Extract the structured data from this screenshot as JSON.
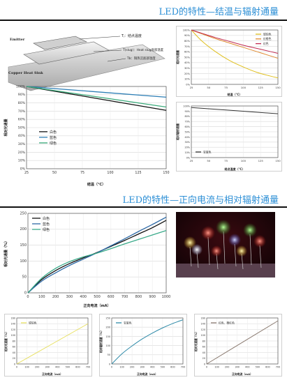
{
  "section1": {
    "title": "LED的特性—结温与辐射通量"
  },
  "section2": {
    "title": "LED的特性—正向电流与相对辐射通量"
  },
  "diagram": {
    "labels": {
      "emitter": "Emitter",
      "tj": "Tⱼ：结点温度",
      "tslug": "T(slug)：Heat slug底部温度",
      "tb": "Tb：铜热沉底部温度",
      "heatsink": "Copper Heat Sink"
    }
  },
  "led_photo": {
    "icon": "led-bulbs-photo"
  },
  "chart_data": [
    {
      "id": "c1",
      "type": "line",
      "x": [
        25,
        150
      ],
      "xlim": [
        25,
        150
      ],
      "ylim": [
        0,
        100
      ],
      "xticks": [
        "25",
        "50",
        "75",
        "100",
        "125",
        "150"
      ],
      "yticks": [
        "0%",
        "10%",
        "20%",
        "30%",
        "40%",
        "50%",
        "60%",
        "70%",
        "80%",
        "90%",
        "100%"
      ],
      "xlabel": "结温（°C）",
      "ylabel": "相对光通量",
      "series": [
        {
          "name": "白色",
          "color": "#111111",
          "values": [
            100,
            71
          ]
        },
        {
          "name": "蓝色",
          "color": "#2e7fb6",
          "values": [
            100,
            87
          ]
        },
        {
          "name": "绿色",
          "color": "#3aaa7a",
          "values": [
            100,
            75
          ]
        }
      ],
      "legend": "left"
    },
    {
      "id": "c2",
      "type": "line",
      "x": [
        25,
        40,
        60,
        80,
        100,
        120,
        140,
        150
      ],
      "xlim": [
        25,
        150
      ],
      "ylim": [
        0,
        100
      ],
      "xticks": [
        "25",
        "50",
        "75",
        "100",
        "125",
        "150"
      ],
      "yticks": [
        "0%",
        "10%",
        "20%",
        "30%",
        "40%",
        "50%",
        "60%",
        "70%",
        "80%",
        "90%",
        "100%"
      ],
      "xlabel": "结温（°C）",
      "ylabel": "相对光通量",
      "series": [
        {
          "name": "琥珀色",
          "color": "#e0c020",
          "values": [
            100,
            80,
            60,
            44,
            32,
            22,
            15,
            12
          ]
        },
        {
          "name": "红橙色",
          "color": "#e08a30",
          "values": [
            100,
            93,
            84,
            76,
            68,
            60,
            52,
            48
          ]
        },
        {
          "name": "红色",
          "color": "#c02a50",
          "values": [
            100,
            94,
            86,
            79,
            72,
            66,
            60,
            57
          ]
        }
      ],
      "legend": "top-right"
    },
    {
      "id": "c3",
      "type": "line",
      "x": [
        25,
        150
      ],
      "xlim": [
        25,
        150
      ],
      "ylim": [
        0,
        100
      ],
      "xticks": [
        "25",
        "50",
        "75",
        "100",
        "125",
        "150"
      ],
      "yticks": [
        "0%",
        "10%",
        "20%",
        "30%",
        "40%",
        "50%",
        "60%",
        "70%",
        "80%",
        "90%",
        "100%"
      ],
      "xlabel": "结点温度（°C）",
      "ylabel": "相对辐射通量",
      "series": [
        {
          "name": "宝蓝色",
          "color": "#333333",
          "values": [
            97,
            85
          ]
        }
      ],
      "legend": "bottom-left"
    },
    {
      "id": "c4",
      "type": "line",
      "x": [
        0,
        100,
        200,
        300,
        400,
        500,
        600,
        700,
        800,
        900,
        1000
      ],
      "xlim": [
        0,
        1000
      ],
      "ylim": [
        0,
        250
      ],
      "xticks": [
        "0",
        "100",
        "200",
        "300",
        "400",
        "500",
        "600",
        "700",
        "800",
        "900",
        "1000"
      ],
      "yticks": [
        "0",
        "50",
        "100",
        "150",
        "200",
        "250"
      ],
      "xlabel": "正向电流（mA）",
      "ylabel": "相对光通量（%）",
      "series": [
        {
          "name": "白色",
          "color": "#111111",
          "values": [
            0,
            42,
            70,
            92,
            110,
            127,
            146,
            165,
            185,
            205,
            228
          ]
        },
        {
          "name": "蓝色",
          "color": "#2e6aa6",
          "values": [
            0,
            37,
            63,
            86,
            106,
            126,
            148,
            170,
            193,
            215,
            238
          ]
        },
        {
          "name": "绿色",
          "color": "#3aaa8a",
          "values": [
            0,
            46,
            77,
            98,
            113,
            125,
            139,
            154,
            168,
            182,
            196
          ]
        }
      ],
      "legend": "top-left"
    },
    {
      "id": "c5",
      "type": "line",
      "x": [
        0,
        700
      ],
      "xlim": [
        0,
        700
      ],
      "ylim": [
        0,
        160
      ],
      "xticks": [
        "0",
        "100",
        "200",
        "300",
        "400",
        "500",
        "600",
        "700"
      ],
      "yticks": [
        "0",
        "20",
        "40",
        "60",
        "80",
        "100",
        "120",
        "140",
        "160"
      ],
      "xlabel": "正向电流（mA）",
      "ylabel": "相对光通量（%）",
      "series": [
        {
          "name": "琥珀色",
          "color": "#e8e060",
          "values": [
            0,
            140
          ]
        }
      ],
      "legend": "top-left"
    },
    {
      "id": "c6",
      "type": "line",
      "x": [
        0,
        100,
        200,
        300,
        400,
        500,
        600,
        700
      ],
      "xlim": [
        0,
        700
      ],
      "ylim": [
        0,
        250
      ],
      "xticks": [
        "0",
        "100",
        "200",
        "300",
        "400",
        "500",
        "600",
        "700"
      ],
      "yticks": [
        "0",
        "50",
        "100",
        "150",
        "200",
        "250"
      ],
      "xlabel": "正向电流（mA）",
      "ylabel": "相对辐射通量（%）",
      "series": [
        {
          "name": "宝蓝色",
          "color": "#2e8aa8",
          "values": [
            0,
            55,
            98,
            136,
            168,
            196,
            220,
            240
          ]
        }
      ],
      "legend": "top-left"
    },
    {
      "id": "c7",
      "type": "line",
      "x": [
        0,
        700
      ],
      "xlim": [
        0,
        700
      ],
      "ylim": [
        0,
        160
      ],
      "xticks": [
        "0",
        "100",
        "200",
        "300",
        "400",
        "500",
        "600",
        "700"
      ],
      "yticks": [
        "0",
        "20",
        "40",
        "60",
        "80",
        "100",
        "120",
        "140",
        "160"
      ],
      "xlabel": "正向电流（mA）",
      "ylabel": "相对光通量（%）",
      "series": [
        {
          "name": "红色、橙红色",
          "color": "#8a7a70",
          "values": [
            0,
            150
          ]
        }
      ],
      "legend": "top-left"
    }
  ]
}
